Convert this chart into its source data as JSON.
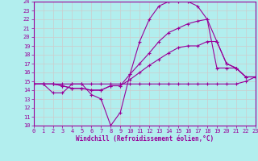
{
  "xlabel": "Windchill (Refroidissement éolien,°C)",
  "bg_color": "#b2eeee",
  "line_color": "#990099",
  "grid_color": "#cccccc",
  "xmin": 0,
  "xmax": 23,
  "ymin": 10,
  "ymax": 24,
  "lines": [
    {
      "x": [
        0,
        1,
        2,
        3,
        4,
        5,
        6,
        7,
        8,
        9,
        10,
        11,
        12,
        13,
        14,
        15,
        16,
        17,
        18,
        19,
        20,
        21,
        22,
        23
      ],
      "y": [
        14.7,
        14.7,
        14.7,
        14.7,
        14.7,
        14.7,
        14.7,
        14.7,
        14.7,
        14.7,
        14.7,
        14.7,
        14.7,
        14.7,
        14.7,
        14.7,
        14.7,
        14.7,
        14.7,
        14.7,
        14.7,
        14.7,
        15.0,
        15.5
      ]
    },
    {
      "x": [
        0,
        1,
        2,
        3,
        4,
        5,
        6,
        7,
        8,
        9,
        10,
        11,
        12,
        13,
        14,
        15,
        16,
        17,
        18,
        19,
        20,
        21,
        22,
        23
      ],
      "y": [
        14.7,
        14.7,
        13.7,
        13.7,
        14.7,
        14.7,
        13.5,
        13.0,
        10.0,
        11.5,
        15.8,
        19.5,
        22.0,
        23.5,
        24.0,
        24.0,
        24.0,
        23.5,
        22.0,
        19.5,
        17.0,
        16.5,
        15.5,
        15.5
      ]
    },
    {
      "x": [
        0,
        1,
        2,
        3,
        4,
        5,
        6,
        7,
        8,
        9,
        10,
        11,
        12,
        13,
        14,
        15,
        16,
        17,
        18,
        19,
        20,
        21,
        22,
        23
      ],
      "y": [
        14.7,
        14.7,
        14.7,
        14.5,
        14.2,
        14.2,
        14.0,
        14.0,
        14.5,
        14.5,
        15.2,
        16.0,
        16.8,
        17.5,
        18.2,
        18.8,
        19.0,
        19.0,
        19.5,
        19.5,
        17.0,
        16.5,
        15.5,
        15.5
      ]
    },
    {
      "x": [
        0,
        1,
        2,
        3,
        4,
        5,
        6,
        7,
        8,
        9,
        10,
        11,
        12,
        13,
        14,
        15,
        16,
        17,
        18,
        19,
        20,
        21,
        22,
        23
      ],
      "y": [
        14.7,
        14.7,
        14.7,
        14.5,
        14.2,
        14.2,
        14.0,
        14.0,
        14.5,
        14.5,
        15.8,
        17.0,
        18.2,
        19.5,
        20.5,
        21.0,
        21.5,
        21.8,
        22.0,
        16.5,
        16.5,
        16.5,
        15.5,
        15.5
      ]
    }
  ]
}
